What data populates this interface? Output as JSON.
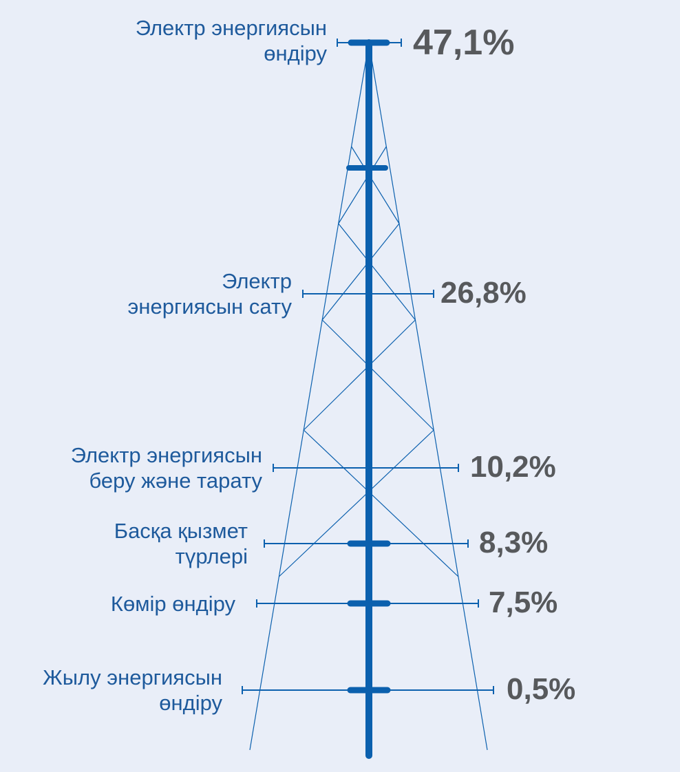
{
  "chart_data": {
    "type": "bar",
    "categories": [
      "Электр энергиясын өндіру",
      "Электр энергиясын сату",
      "Электр энергиясын беру және тарату",
      "Басқа қызмет түрлері",
      "Көмір өндіру",
      "Жылу энергиясын өндіру"
    ],
    "values": [
      47.1,
      26.8,
      10.2,
      8.3,
      7.5,
      0.5
    ],
    "value_labels": [
      "47,1%",
      "26,8%",
      "10,2%",
      "8,3%",
      "7,5%",
      "0,5%"
    ],
    "label_lines": [
      [
        "Электр энергиясын",
        "өндіру"
      ],
      [
        "Электр",
        "энергиясын сату"
      ],
      [
        "Электр энергиясын",
        "беру және тарату"
      ],
      [
        "Басқа қызмет",
        "түрлері"
      ],
      [
        "Көмір өндіру"
      ],
      [
        "Жылу энергиясын",
        "өндіру"
      ]
    ],
    "colors": {
      "accent": "#0b60ae",
      "label": "#1e5a9c",
      "value": "#57595c",
      "background": "#e9eef8"
    }
  }
}
